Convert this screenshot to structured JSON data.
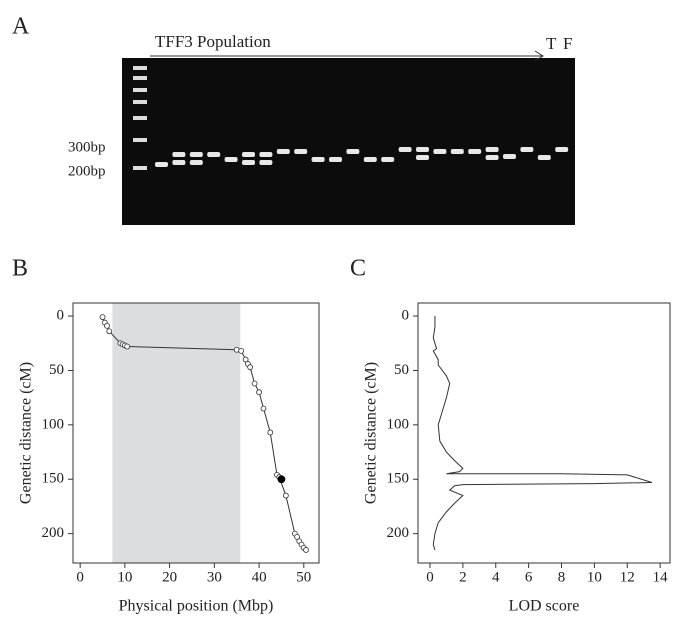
{
  "panel_labels": [
    "A",
    "B",
    "C"
  ],
  "gel": {
    "title": "TFF3 Population",
    "end_labels": [
      "T",
      "F"
    ],
    "size_labels": [
      "300bp",
      "200bp"
    ]
  },
  "chart_data": [
    {
      "type": "scatter",
      "xlabel": "Physical position (Mbp)",
      "ylabel": "Genetic distance (cM)",
      "xlim": [
        -1.6,
        53.4
      ],
      "ylim": [
        -12,
        227
      ],
      "invert_y": true,
      "xticks": [
        0,
        10,
        20,
        30,
        40,
        50
      ],
      "yticks": [
        0,
        50,
        100,
        150,
        200
      ],
      "shaded_region": [
        7.2,
        35.8
      ],
      "shade_color": "#dcdde0",
      "line": true,
      "series": [
        {
          "color": "#333333",
          "marker": "open",
          "x": [
            5,
            5.5,
            6,
            6.5,
            9,
            9.5,
            10,
            10.5,
            35,
            36,
            37,
            37.5,
            38,
            39,
            40,
            41,
            42.5,
            44,
            44.5,
            46,
            48,
            48.5,
            49,
            49.5,
            50,
            50.5
          ],
          "values": [
            1,
            6,
            9,
            14,
            25,
            26,
            27,
            28,
            31,
            32,
            40,
            44,
            47,
            62,
            70,
            85,
            107,
            146,
            148,
            165,
            200,
            203,
            207,
            210,
            213,
            215
          ]
        },
        {
          "color": "#000000",
          "marker": "filled",
          "x": [
            45
          ],
          "values": [
            150
          ]
        }
      ]
    },
    {
      "type": "line",
      "xlabel": "LOD score",
      "ylabel": "Genetic distance (cM)",
      "xlim": [
        -0.73,
        14.6
      ],
      "ylim": [
        -12,
        227
      ],
      "invert_y": true,
      "xticks": [
        0,
        2,
        4,
        6,
        8,
        10,
        12,
        14
      ],
      "yticks": [
        0,
        50,
        100,
        150,
        200
      ],
      "series": [
        {
          "color": "#333333",
          "x": [
            0.3,
            0.3,
            0.2,
            0.4,
            0.2,
            0.5,
            0.5,
            1,
            1.2,
            1,
            0.8,
            0.5,
            0.6,
            1,
            1.5,
            2,
            1.8,
            1,
            8,
            12,
            13.5,
            10,
            2,
            1.5,
            1.2,
            2,
            1.5,
            1,
            0.5,
            0.3,
            0.2,
            0.3
          ],
          "values": [
            0,
            10,
            20,
            30,
            32,
            40,
            45,
            55,
            62,
            75,
            85,
            100,
            115,
            125,
            133,
            140,
            143,
            145,
            145,
            146,
            153,
            154,
            155,
            156,
            160,
            165,
            172,
            180,
            190,
            200,
            210,
            215
          ]
        }
      ]
    }
  ]
}
